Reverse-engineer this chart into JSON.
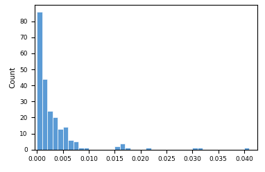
{
  "title": "",
  "xlabel": "",
  "ylabel": "Count",
  "xlim": [
    -0.0005,
    0.0425
  ],
  "ylim": [
    0,
    90
  ],
  "bar_color": "#5B9BD5",
  "bar_edge_color": "white",
  "bin_edges": [
    0.0,
    0.001,
    0.002,
    0.003,
    0.004,
    0.005,
    0.006,
    0.007,
    0.008,
    0.009,
    0.01,
    0.011,
    0.012,
    0.013,
    0.014,
    0.015,
    0.016,
    0.017,
    0.018,
    0.019,
    0.02,
    0.021,
    0.022,
    0.023,
    0.024,
    0.025,
    0.026,
    0.027,
    0.028,
    0.029,
    0.03,
    0.031,
    0.032,
    0.033,
    0.034,
    0.035,
    0.036,
    0.037,
    0.038,
    0.039,
    0.04,
    0.041
  ],
  "counts": [
    86,
    44,
    24,
    20,
    13,
    14,
    6,
    5,
    1,
    1,
    0,
    0,
    0,
    0,
    0,
    2,
    4,
    1,
    0,
    0,
    0,
    1,
    0,
    0,
    0,
    0,
    0,
    0,
    0,
    0,
    1,
    1,
    0,
    0,
    0,
    0,
    0,
    0,
    0,
    0,
    1
  ],
  "xticks": [
    0.0,
    0.005,
    0.01,
    0.015,
    0.02,
    0.025,
    0.03,
    0.035,
    0.04
  ],
  "yticks": [
    0,
    10,
    20,
    30,
    40,
    50,
    60,
    70,
    80
  ],
  "background_color": "#ffffff",
  "tick_fontsize": 6.5,
  "ylabel_fontsize": 7.5
}
